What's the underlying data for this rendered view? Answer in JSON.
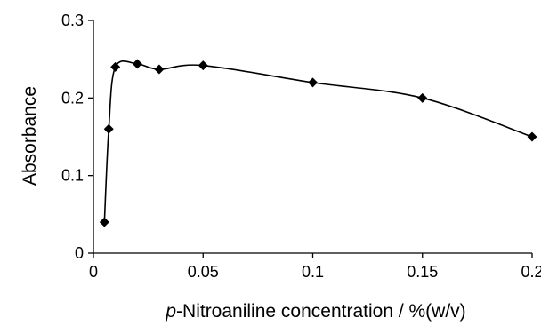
{
  "chart_data": {
    "type": "scatter",
    "title": "",
    "xlabel_prefix": "p",
    "xlabel_rest": "-Nitroaniline concentration / %(w/v)",
    "ylabel": "Absorbance",
    "xlim": [
      0,
      0.2
    ],
    "ylim": [
      0,
      0.3
    ],
    "x_ticks": [
      0,
      0.05,
      0.1,
      0.15,
      0.2
    ],
    "x_tick_labels": [
      "0",
      "0.05",
      "0.1",
      "0.15",
      "0.2"
    ],
    "y_ticks": [
      0,
      0.1,
      0.2,
      0.3
    ],
    "y_tick_labels": [
      "0",
      "0.1",
      "0.2",
      "0.3"
    ],
    "grid": false,
    "marker": "diamond",
    "line": "smoothed",
    "colors": {
      "series": "#000000",
      "axes": "#000000"
    },
    "series": [
      {
        "x": [
          0.005,
          0.007,
          0.01,
          0.02,
          0.03,
          0.05,
          0.1,
          0.15,
          0.2
        ],
        "y": [
          0.04,
          0.16,
          0.24,
          0.244,
          0.237,
          0.242,
          0.22,
          0.2,
          0.15
        ]
      }
    ]
  }
}
